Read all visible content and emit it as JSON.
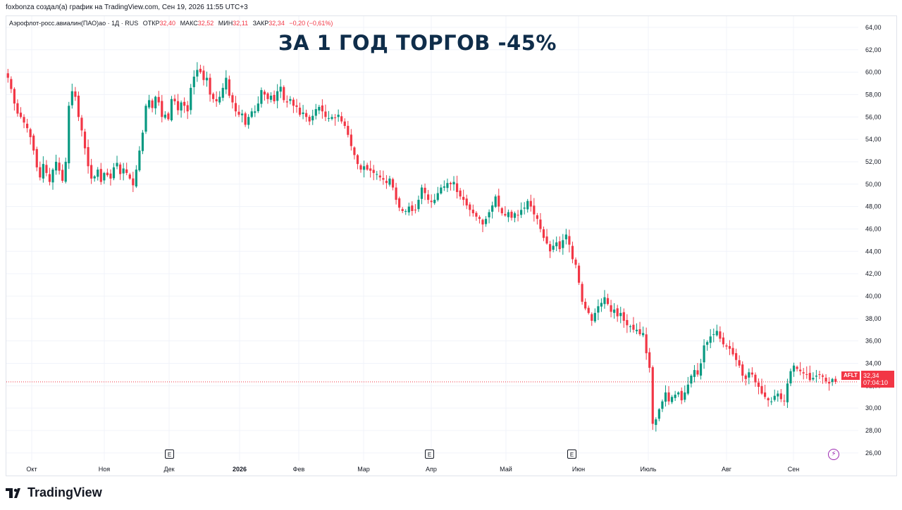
{
  "header": {
    "text": "foxbonza создал(а) график на TradingView.com, Сен 19, 2026 11:55 UTC+3"
  },
  "legend": {
    "symbol": "Аэрофлот-росс.авиалин(ПАО)ао · 1Д · RUS",
    "open_label": "ОТКР",
    "open": "32,40",
    "high_label": "МАКС",
    "high": "32,52",
    "low_label": "МИН",
    "low": "32,11",
    "close_label": "ЗАКР",
    "close": "32,34",
    "change": "−0,20 (−0,61%)"
  },
  "headline": "ЗА 1 ГОД ТОРГОВ -45%",
  "price_badge": {
    "ticker": "AFLT",
    "price": "32,34",
    "countdown": "07:04:10"
  },
  "events": [
    {
      "label": "E",
      "month": "Дек"
    },
    {
      "label": "E",
      "month": "Апр"
    },
    {
      "label": "E",
      "month": "Июн"
    }
  ],
  "logo": {
    "text": "TradingView",
    "icon": "tradingview-logo-icon"
  },
  "flash_icon": "lightning-icon",
  "colors": {
    "up": "#089981",
    "down": "#f23645",
    "grid": "#f0f3fa",
    "last_price_line": "#f23645",
    "event_border": "#131722"
  },
  "chart_data": {
    "type": "candlestick",
    "title": "ЗА 1 ГОД ТОРГОВ -45%",
    "y_axis": {
      "ticks": [
        "26,00",
        "28,00",
        "30,00",
        "32,00",
        "34,00",
        "36,00",
        "38,00",
        "40,00",
        "42,00",
        "44,00",
        "46,00",
        "48,00",
        "50,00",
        "52,00",
        "54,00",
        "56,00",
        "58,00",
        "60,00",
        "62,00",
        "64,00"
      ],
      "range": [
        25.3,
        65.0
      ],
      "position": "right"
    },
    "x_axis": {
      "ticks": [
        {
          "label": "Окт",
          "bold": false
        },
        {
          "label": "Ноя",
          "bold": false
        },
        {
          "label": "Дек",
          "bold": false
        },
        {
          "label": "2026",
          "bold": true
        },
        {
          "label": "Фев",
          "bold": false
        },
        {
          "label": "Мар",
          "bold": false
        },
        {
          "label": "Апр",
          "bold": false
        },
        {
          "label": "Май",
          "bold": false
        },
        {
          "label": "Июн",
          "bold": false
        },
        {
          "label": "Июль",
          "bold": false
        },
        {
          "label": "Авг",
          "bold": false
        },
        {
          "label": "Сен",
          "bold": false
        }
      ]
    },
    "last_price": 32.34,
    "closes": [
      59.5,
      58.5,
      57.2,
      56.3,
      56.0,
      55.5,
      55.0,
      54.2,
      53.0,
      51.5,
      50.6,
      51.8,
      51.0,
      50.2,
      51.3,
      52.0,
      51.2,
      50.3,
      52.0,
      57.0,
      58.3,
      57.8,
      56.0,
      54.8,
      53.2,
      51.6,
      50.5,
      50.7,
      51.3,
      50.2,
      51.0,
      50.8,
      50.5,
      51.5,
      51.9,
      50.9,
      51.4,
      51.0,
      50.5,
      49.9,
      51.3,
      53.0,
      54.6,
      57.0,
      57.5,
      56.8,
      57.8,
      57.3,
      56.0,
      56.2,
      55.8,
      57.6,
      57.4,
      56.6,
      57.3,
      57.0,
      56.5,
      58.6,
      59.6,
      60.2,
      60.0,
      59.3,
      59.5,
      58.0,
      57.6,
      57.4,
      57.8,
      58.6,
      59.5,
      57.9,
      57.3,
      56.5,
      56.2,
      56.3,
      55.3,
      56.0,
      56.5,
      56.5,
      57.2,
      58.4,
      58.0,
      57.6,
      57.9,
      57.4,
      58.3,
      58.7,
      57.5,
      57.3,
      57.6,
      57.0,
      56.9,
      56.2,
      56.4,
      56.0,
      55.6,
      56.1,
      56.7,
      56.9,
      56.5,
      56.0,
      55.9,
      56.0,
      55.9,
      56.2,
      55.6,
      55.2,
      54.4,
      53.4,
      52.6,
      51.8,
      51.3,
      51.6,
      51.3,
      51.2,
      51.0,
      50.9,
      50.6,
      50.4,
      50.1,
      50.5,
      49.7,
      48.6,
      47.9,
      47.6,
      47.6,
      48.0,
      47.6,
      47.7,
      48.6,
      49.7,
      49.2,
      48.6,
      48.4,
      48.6,
      49.2,
      49.7,
      49.8,
      50.1,
      50.0,
      50.2,
      49.3,
      48.9,
      48.6,
      48.1,
      47.7,
      47.4,
      47.1,
      46.9,
      46.4,
      46.9,
      47.5,
      48.1,
      48.9,
      48.0,
      47.4,
      47.2,
      47.5,
      47.0,
      47.4,
      47.2,
      47.7,
      47.9,
      48.5,
      48.0,
      47.3,
      46.9,
      46.0,
      45.2,
      44.7,
      44.0,
      44.5,
      44.8,
      44.2,
      45.0,
      45.5,
      44.6,
      43.3,
      42.8,
      41.2,
      39.5,
      38.9,
      38.5,
      37.8,
      38.5,
      39.1,
      39.4,
      39.9,
      39.3,
      38.6,
      38.8,
      38.2,
      38.5,
      37.8,
      37.4,
      37.3,
      37.0,
      37.0,
      36.6,
      36.7,
      34.9,
      33.6,
      28.6,
      29.0,
      29.9,
      30.6,
      31.4,
      30.6,
      31.0,
      31.2,
      31.4,
      30.7,
      31.4,
      32.1,
      32.9,
      33.4,
      33.0,
      34.0,
      35.6,
      35.9,
      36.4,
      36.6,
      36.9,
      36.2,
      35.7,
      35.5,
      35.3,
      34.8,
      34.3,
      33.8,
      32.9,
      32.6,
      33.2,
      33.0,
      32.3,
      31.9,
      31.3,
      31.0,
      30.7,
      30.6,
      31.1,
      31.3,
      30.8,
      30.6,
      32.2,
      33.3,
      33.8,
      33.5,
      33.3,
      33.1,
      33.0,
      32.5,
      32.7,
      32.9,
      33.0,
      32.8,
      32.4,
      32.2,
      32.6,
      32.34
    ]
  }
}
